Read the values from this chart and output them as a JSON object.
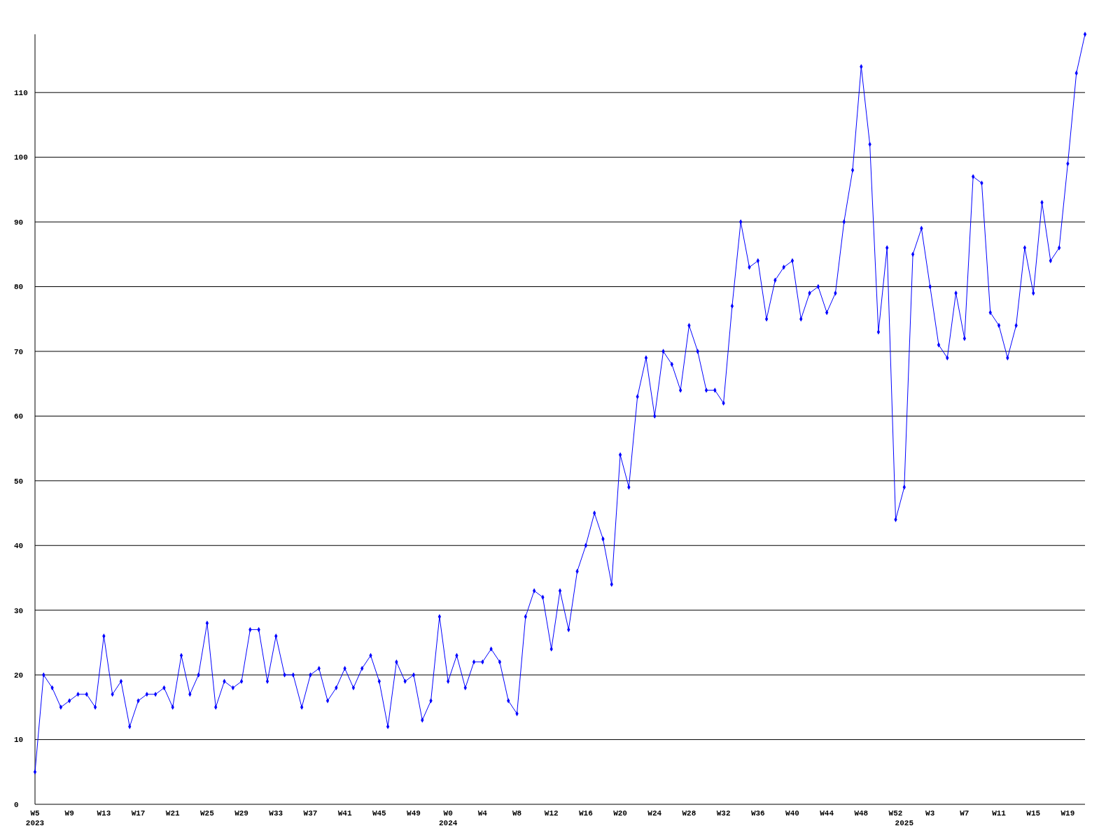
{
  "chart_data": {
    "type": "line",
    "categories": [
      "W5\n2023",
      null,
      null,
      null,
      "W9",
      null,
      null,
      null,
      "W13",
      null,
      null,
      null,
      "W17",
      null,
      null,
      null,
      "W21",
      null,
      null,
      null,
      "W25",
      null,
      null,
      null,
      "W29",
      null,
      null,
      null,
      "W33",
      null,
      null,
      null,
      "W37",
      null,
      null,
      null,
      "W41",
      null,
      null,
      null,
      "W45",
      null,
      null,
      null,
      "W49",
      null,
      null,
      null,
      "W0\n2024",
      null,
      null,
      null,
      "W4",
      null,
      null,
      null,
      "W8",
      null,
      null,
      null,
      "W12",
      null,
      null,
      null,
      "W16",
      null,
      null,
      null,
      "W20",
      null,
      null,
      null,
      "W24",
      null,
      null,
      null,
      "W28",
      null,
      null,
      null,
      "W32",
      null,
      null,
      null,
      "W36",
      null,
      null,
      null,
      "W40",
      null,
      null,
      null,
      "W44",
      null,
      null,
      null,
      "W48",
      null,
      null,
      null,
      "W52",
      "\n2025",
      null,
      null,
      "W3",
      null,
      null,
      null,
      "W7",
      null,
      null,
      null,
      "W11",
      null,
      null,
      null,
      "W15",
      null,
      null,
      null,
      "W19",
      null,
      null
    ],
    "series": [
      {
        "color": "#0000ff",
        "values": [
          5,
          20,
          18,
          15,
          16,
          17,
          17,
          15,
          26,
          17,
          19,
          12,
          16,
          17,
          17,
          18,
          15,
          23,
          17,
          20,
          28,
          15,
          19,
          18,
          19,
          27,
          27,
          19,
          26,
          20,
          20,
          15,
          20,
          21,
          16,
          18,
          21,
          18,
          21,
          23,
          19,
          12,
          22,
          19,
          20,
          13,
          16,
          29,
          19,
          23,
          18,
          22,
          22,
          24,
          22,
          16,
          14,
          29,
          33,
          32,
          24,
          33,
          27,
          36,
          40,
          45,
          41,
          34,
          54,
          49,
          63,
          69,
          60,
          70,
          68,
          64,
          74,
          70,
          64,
          64,
          62,
          77,
          90,
          83,
          84,
          75,
          81,
          83,
          84,
          75,
          79,
          80,
          76,
          79,
          90,
          98,
          114,
          102,
          73,
          86,
          44,
          49,
          85,
          89,
          80,
          71,
          69,
          79,
          72,
          97,
          96,
          76,
          74,
          69,
          74,
          86,
          79,
          93,
          84,
          86,
          99,
          113,
          119
        ]
      }
    ],
    "ylim": [
      0,
      119
    ],
    "yticks": [
      0,
      10,
      20,
      30,
      40,
      50,
      60,
      70,
      80,
      90,
      100,
      110
    ],
    "grid": "y",
    "marker": "diamond",
    "line_style": "solid"
  }
}
